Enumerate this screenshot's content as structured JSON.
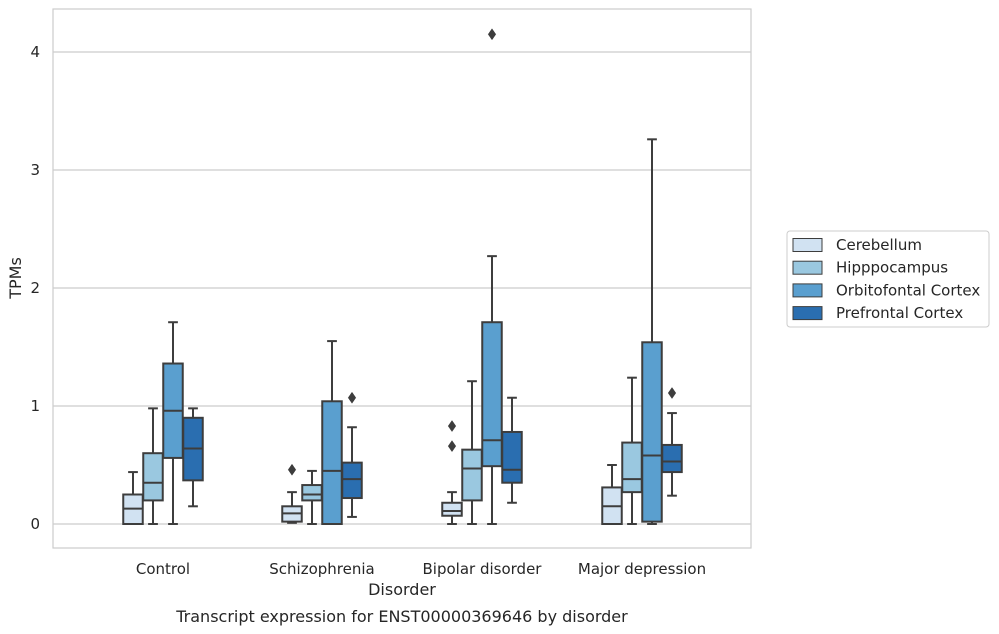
{
  "chart_data": {
    "type": "boxplot",
    "title": "",
    "caption": "Transcript expression for ENST00000369646 by disorder",
    "xlabel": "Disorder",
    "ylabel": "TPMs",
    "ylim": [
      -0.2,
      4.37
    ],
    "yticks": [
      0,
      1,
      2,
      3,
      4
    ],
    "grid": "horizontal",
    "legend_position": "right",
    "categories": [
      "Control",
      "Schizophrenia",
      "Bipolar disorder",
      "Major depression"
    ],
    "series": [
      {
        "name": "Cerebellum",
        "color": "#d1e2f2",
        "boxes": [
          {
            "whislo": 0.0,
            "q1": 0.0,
            "med": 0.13,
            "q3": 0.25,
            "whishi": 0.44,
            "fliers": []
          },
          {
            "whislo": 0.01,
            "q1": 0.02,
            "med": 0.09,
            "q3": 0.15,
            "whishi": 0.27,
            "fliers": [
              0.46
            ]
          },
          {
            "whislo": 0.0,
            "q1": 0.07,
            "med": 0.11,
            "q3": 0.18,
            "whishi": 0.27,
            "fliers": [
              0.66,
              0.83
            ]
          },
          {
            "whislo": 0.0,
            "q1": 0.0,
            "med": 0.15,
            "q3": 0.31,
            "whishi": 0.5,
            "fliers": []
          }
        ]
      },
      {
        "name": "Hipppocampus",
        "color": "#9ac8e0",
        "boxes": [
          {
            "whislo": 0.0,
            "q1": 0.2,
            "med": 0.35,
            "q3": 0.6,
            "whishi": 0.98,
            "fliers": []
          },
          {
            "whislo": 0.0,
            "q1": 0.2,
            "med": 0.25,
            "q3": 0.33,
            "whishi": 0.45,
            "fliers": []
          },
          {
            "whislo": 0.0,
            "q1": 0.2,
            "med": 0.47,
            "q3": 0.63,
            "whishi": 1.21,
            "fliers": []
          },
          {
            "whislo": 0.0,
            "q1": 0.27,
            "med": 0.38,
            "q3": 0.69,
            "whishi": 1.24,
            "fliers": []
          }
        ]
      },
      {
        "name": "Orbitofontal Cortex",
        "color": "#5a9fcf",
        "boxes": [
          {
            "whislo": 0.0,
            "q1": 0.56,
            "med": 0.96,
            "q3": 1.36,
            "whishi": 1.71,
            "fliers": []
          },
          {
            "whislo": 0.0,
            "q1": 0.0,
            "med": 0.45,
            "q3": 1.04,
            "whishi": 1.55,
            "fliers": []
          },
          {
            "whislo": 0.0,
            "q1": 0.49,
            "med": 0.71,
            "q3": 1.71,
            "whishi": 2.27,
            "fliers": [
              4.15
            ]
          },
          {
            "whislo": 0.0,
            "q1": 0.02,
            "med": 0.58,
            "q3": 1.54,
            "whishi": 3.26,
            "fliers": []
          }
        ]
      },
      {
        "name": "Prefrontal Cortex",
        "color": "#2a6eb0",
        "boxes": [
          {
            "whislo": 0.15,
            "q1": 0.37,
            "med": 0.64,
            "q3": 0.9,
            "whishi": 0.98,
            "fliers": []
          },
          {
            "whislo": 0.06,
            "q1": 0.22,
            "med": 0.38,
            "q3": 0.52,
            "whishi": 0.82,
            "fliers": [
              1.07
            ]
          },
          {
            "whislo": 0.18,
            "q1": 0.35,
            "med": 0.46,
            "q3": 0.78,
            "whishi": 1.07,
            "fliers": []
          },
          {
            "whislo": 0.24,
            "q1": 0.44,
            "med": 0.53,
            "q3": 0.67,
            "whishi": 0.94,
            "fliers": [
              1.11
            ]
          }
        ]
      }
    ]
  }
}
